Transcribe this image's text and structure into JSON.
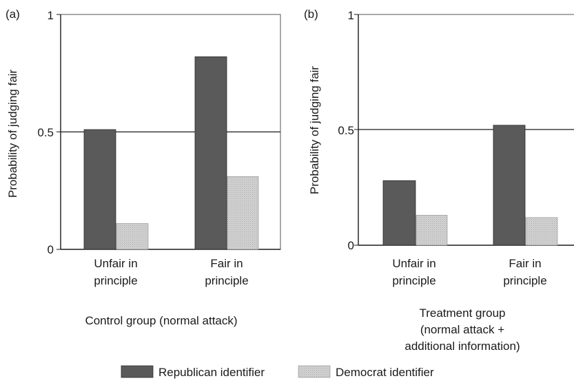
{
  "chart_data": [
    {
      "type": "bar",
      "panel_label": "(a)",
      "title": "",
      "xlabel": "Control group (normal attack)",
      "ylabel": "Probability of judging fair",
      "ylim": [
        0,
        1
      ],
      "yticks": [
        "0",
        "0.5",
        "1"
      ],
      "reference_line": 0.5,
      "categories": [
        "Unfair in principle",
        "Fair in principle"
      ],
      "category_lines": [
        [
          "Unfair in",
          "principle"
        ],
        [
          "Fair in",
          "principle"
        ]
      ],
      "series": [
        {
          "name": "Republican identifier",
          "values": [
            0.51,
            0.82
          ]
        },
        {
          "name": "Democrat identifier",
          "values": [
            0.11,
            0.31
          ]
        }
      ]
    },
    {
      "type": "bar",
      "panel_label": "(b)",
      "title": "",
      "xlabel": "Treatment group\n(normal attack +\nadditional information)",
      "xlabel_lines": [
        "Treatment group",
        "(normal attack +",
        "additional information)"
      ],
      "ylabel": "Probability of judging fair",
      "ylim": [
        0,
        1
      ],
      "yticks": [
        "0",
        "0.5",
        "1"
      ],
      "reference_line": 0.5,
      "categories": [
        "Unfair in principle",
        "Fair in principle"
      ],
      "category_lines": [
        [
          "Unfair in",
          "principle"
        ],
        [
          "Fair in",
          "principle"
        ]
      ],
      "series": [
        {
          "name": "Republican identifier",
          "values": [
            0.28,
            0.52
          ]
        },
        {
          "name": "Democrat identifier",
          "values": [
            0.13,
            0.12
          ]
        }
      ]
    }
  ],
  "legend": {
    "placement": "bottom-center",
    "items": [
      {
        "label": "Republican identifier",
        "color": "#5a5a5a"
      },
      {
        "label": "Democrat identifier",
        "color": "#c8c8c8"
      }
    ]
  },
  "colors": {
    "republican": "#5a5a5a",
    "democrat": "#c8c8c8",
    "axis": "#1a1a1a",
    "border": "#555555"
  }
}
